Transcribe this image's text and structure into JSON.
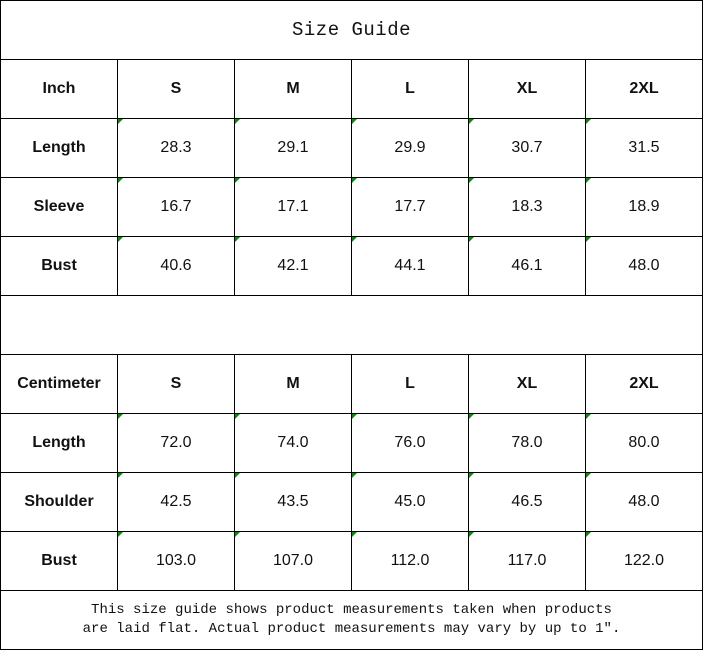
{
  "title": "Size Guide",
  "inch_table": {
    "header": [
      "Inch",
      "S",
      "M",
      "L",
      "XL",
      "2XL"
    ],
    "rows": [
      {
        "label": "Length",
        "values": [
          "28.3",
          "29.1",
          "29.9",
          "30.7",
          "31.5"
        ]
      },
      {
        "label": "Sleeve",
        "values": [
          "16.7",
          "17.1",
          "17.7",
          "18.3",
          "18.9"
        ]
      },
      {
        "label": "Bust",
        "values": [
          "40.6",
          "42.1",
          "44.1",
          "46.1",
          "48.0"
        ]
      }
    ]
  },
  "cm_table": {
    "header": [
      "Centimeter",
      "S",
      "M",
      "L",
      "XL",
      "2XL"
    ],
    "rows": [
      {
        "label": "Length",
        "values": [
          "72.0",
          "74.0",
          "76.0",
          "78.0",
          "80.0"
        ]
      },
      {
        "label": "Shoulder",
        "values": [
          "42.5",
          "43.5",
          "45.0",
          "46.5",
          "48.0"
        ]
      },
      {
        "label": "Bust",
        "values": [
          "103.0",
          "107.0",
          "112.0",
          "117.0",
          "122.0"
        ]
      }
    ]
  },
  "note_line1": "This size guide shows product measurements taken when products",
  "note_line2": "are laid flat. Actual product measurements may vary by up to 1″.",
  "colors": {
    "cell_marker": "#0a8a0a",
    "border": "#000000"
  }
}
